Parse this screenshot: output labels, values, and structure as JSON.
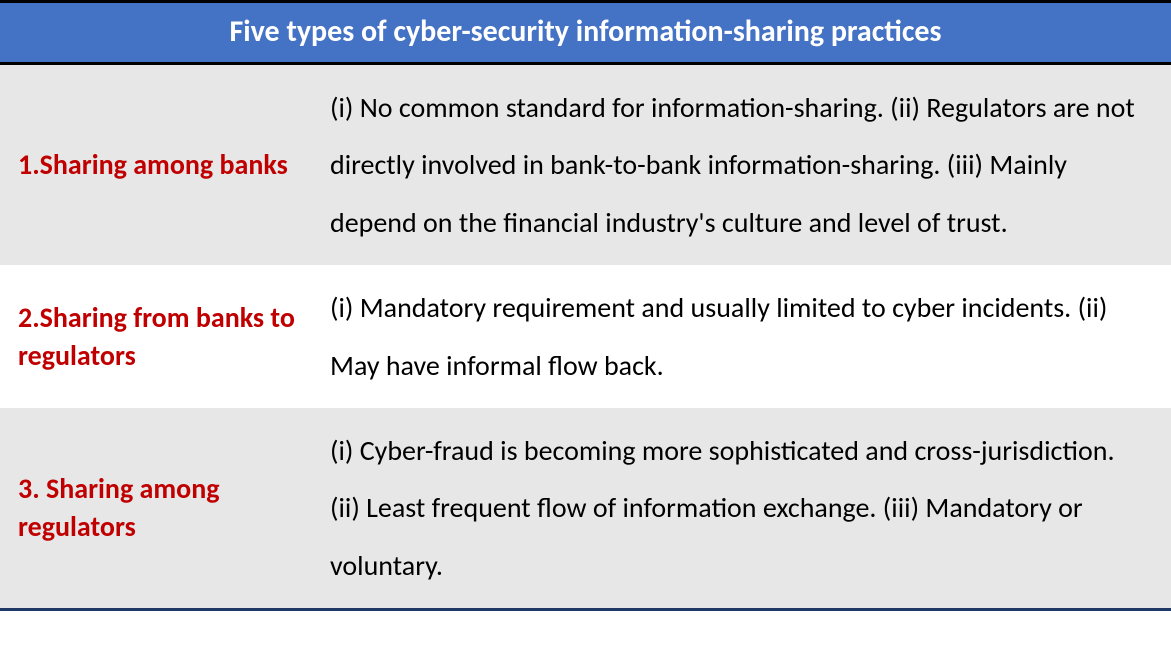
{
  "table": {
    "header": {
      "text": "Five types of cyber-security information-sharing practices",
      "bg": "#4472c4",
      "color": "#ffffff",
      "fontsize": 30
    },
    "label_color": "#c00000",
    "body_color": "#000000",
    "label_fontsize": 28,
    "body_fontsize": 28,
    "row_bg_alt": "#e7e7e7",
    "row_bg": "#ffffff",
    "rows": [
      {
        "label": "1.Sharing among banks",
        "desc": "(i) No common standard for information-sharing. (ii) Regulators are not directly involved in bank-to-bank information-sharing. (iii) Mainly depend on the financial industry's culture and level of trust.",
        "alt": true
      },
      {
        "label": "2.Sharing from banks to regulators",
        "desc": "(i) Mandatory requirement and usually limited to cyber incidents. (ii) May have informal flow back.",
        "alt": false
      },
      {
        "label": "3. Sharing among regulators",
        "desc": "(i) Cyber-fraud is becoming more sophisticated and cross-jurisdiction. (ii) Least frequent flow of information exchange. (iii) Mandatory or voluntary.",
        "alt": true
      }
    ]
  }
}
